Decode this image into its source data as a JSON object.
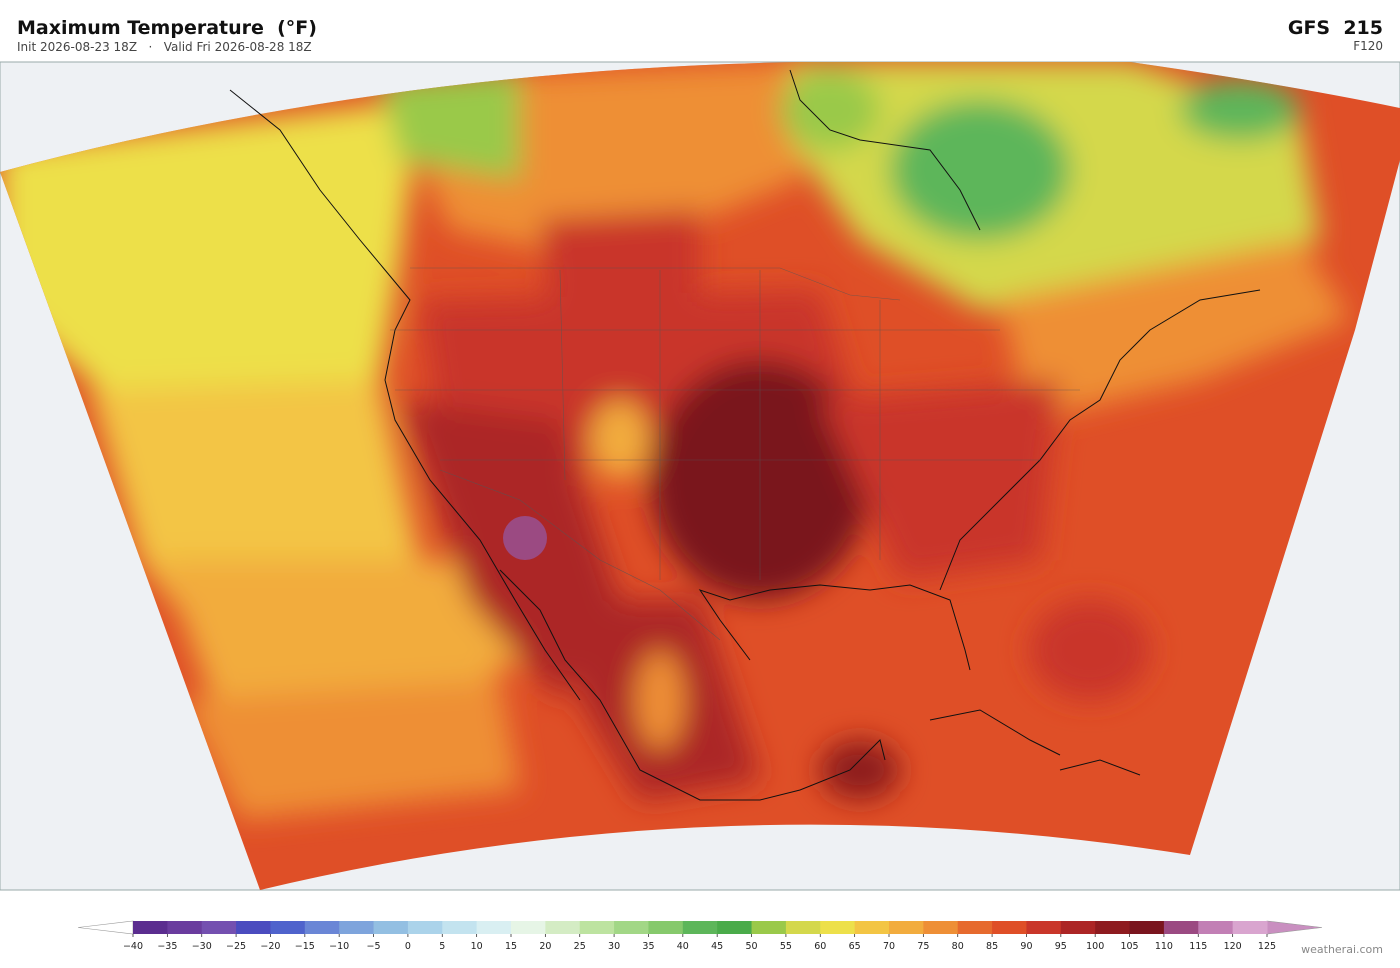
{
  "header": {
    "title": "Maximum Temperature  (°F)",
    "subtitle": "Init 2026-08-23 18Z   ·   Valid Fri 2026-08-28 18Z",
    "model": "GFS  215",
    "step": "F120"
  },
  "colorbar": {
    "ticks": [
      {
        "value": -40,
        "label": "−40"
      },
      {
        "value": -35,
        "label": "−35"
      },
      {
        "value": -30,
        "label": "−30"
      },
      {
        "value": -25,
        "label": "−25"
      },
      {
        "value": -20,
        "label": "−20"
      },
      {
        "value": -15,
        "label": "−15"
      },
      {
        "value": -10,
        "label": "−10"
      },
      {
        "value": -5,
        "label": "−5"
      },
      0,
      5,
      10,
      15,
      20,
      25,
      30,
      35,
      40,
      45,
      50,
      55,
      60,
      65,
      70,
      75,
      80,
      85,
      90,
      95,
      100,
      105,
      110,
      115,
      120,
      125
    ],
    "colors": [
      "#5b2d8f",
      "#6a3c9e",
      "#7450b0",
      "#4b4cbf",
      "#4f63cc",
      "#6a86d6",
      "#7ea4dc",
      "#93bfe2",
      "#abd3ea",
      "#c3e3ef",
      "#d9eff2",
      "#e6f5e6",
      "#d4ecc4",
      "#bde3a0",
      "#a2d786",
      "#86c96c",
      "#5db65a",
      "#4aab4a",
      "#9ac94a",
      "#d4d84c",
      "#ede04a",
      "#f3c544",
      "#f2ac3e",
      "#ee8f36",
      "#e66a2e",
      "#df4f27",
      "#c9362a",
      "#ac2525",
      "#8e1b1f",
      "#7a151e",
      "#9b4a82",
      "#c27fb5",
      "#d9a5cf"
    ],
    "under_color": "#ffffff",
    "over_color": "#c98fc0"
  },
  "footer": {
    "credit": "weatherai.com"
  }
}
